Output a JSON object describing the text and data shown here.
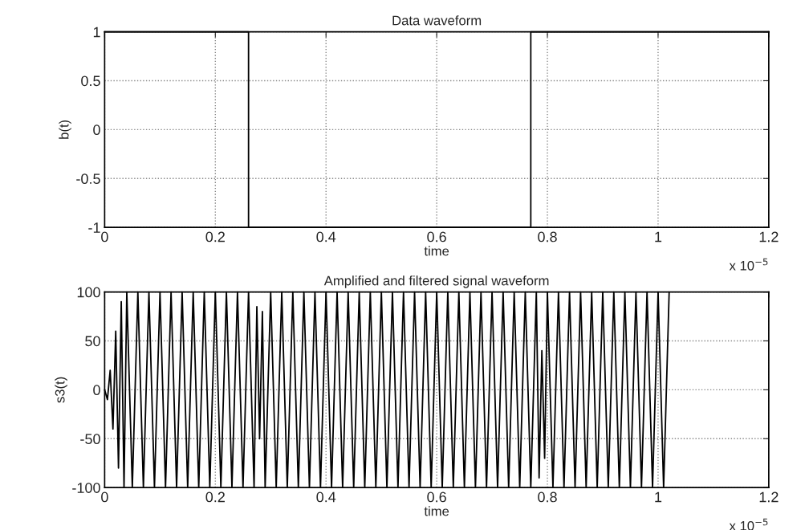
{
  "chart_data": [
    {
      "type": "line",
      "title": "Data waveform",
      "xlabel": "time",
      "ylabel": "b(t)",
      "xlim": [
        0,
        1.2
      ],
      "xticks": [
        0,
        0.2,
        0.4,
        0.6,
        0.8,
        1,
        1.2
      ],
      "ylim": [
        -1,
        1
      ],
      "yticks": [
        -1,
        -0.5,
        0,
        0.5,
        1
      ],
      "grid": true,
      "line_style": "solid",
      "annotations": [
        "x 10$^{−5}$"
      ],
      "series": [
        {
          "color": "#000000",
          "x": [
            0,
            0.26,
            0.26,
            0.77,
            0.77,
            1.2
          ],
          "values": [
            1,
            1,
            -1,
            -1,
            1,
            1
          ]
        }
      ]
    },
    {
      "type": "line",
      "title": "Amplified and filtered signal waveform",
      "xlabel": "time",
      "ylabel": "s3(t)",
      "xlim": [
        0,
        1.2
      ],
      "xticks": [
        0,
        0.2,
        0.4,
        0.6,
        0.8,
        1,
        1.2
      ],
      "ylim": [
        -100,
        100
      ],
      "yticks": [
        -100,
        -50,
        0,
        50,
        100
      ],
      "grid": true,
      "line_style": "solid",
      "annotations": [
        "x 10$^{−5}$"
      ],
      "series": [
        {
          "color": "#000000",
          "x": [
            0,
            0.005,
            0.01,
            0.015,
            0.02,
            0.025,
            0.03,
            0.035,
            0.04,
            0.05,
            0.06,
            0.07,
            0.08,
            0.09,
            0.1,
            0.11,
            0.12,
            0.13,
            0.14,
            0.15,
            0.16,
            0.17,
            0.18,
            0.19,
            0.2,
            0.21,
            0.22,
            0.23,
            0.24,
            0.25,
            0.26,
            0.27,
            0.275,
            0.28,
            0.285,
            0.29,
            0.3,
            0.31,
            0.32,
            0.33,
            0.34,
            0.35,
            0.36,
            0.37,
            0.38,
            0.39,
            0.4,
            0.41,
            0.42,
            0.43,
            0.44,
            0.45,
            0.46,
            0.47,
            0.48,
            0.49,
            0.5,
            0.51,
            0.52,
            0.53,
            0.54,
            0.55,
            0.56,
            0.57,
            0.58,
            0.59,
            0.6,
            0.61,
            0.62,
            0.63,
            0.64,
            0.65,
            0.66,
            0.67,
            0.68,
            0.69,
            0.7,
            0.71,
            0.72,
            0.73,
            0.74,
            0.75,
            0.76,
            0.77,
            0.78,
            0.785,
            0.79,
            0.795,
            0.8,
            0.81,
            0.82,
            0.83,
            0.84,
            0.85,
            0.86,
            0.87,
            0.88,
            0.89,
            0.9,
            0.91,
            0.92,
            0.93,
            0.94,
            0.95,
            0.96,
            0.97,
            0.98,
            0.99,
            1.0,
            1.01,
            1.02
          ],
          "values": [
            0,
            -10,
            20,
            -40,
            60,
            -80,
            90,
            -100,
            100,
            -100,
            100,
            -100,
            100,
            -100,
            100,
            -100,
            100,
            -100,
            100,
            -100,
            100,
            -100,
            100,
            -100,
            100,
            -100,
            100,
            -100,
            100,
            -100,
            100,
            -100,
            85,
            -50,
            80,
            -100,
            100,
            -100,
            100,
            -100,
            100,
            -100,
            100,
            -100,
            100,
            -100,
            100,
            -100,
            100,
            -100,
            100,
            -100,
            100,
            -100,
            100,
            -100,
            100,
            -100,
            100,
            -100,
            100,
            -100,
            100,
            -100,
            100,
            -100,
            100,
            -100,
            100,
            -100,
            100,
            -100,
            100,
            -100,
            100,
            -100,
            100,
            -100,
            100,
            -100,
            100,
            -100,
            100,
            -100,
            100,
            -90,
            40,
            -70,
            100,
            -100,
            100,
            -100,
            100,
            -100,
            100,
            -100,
            100,
            -100,
            100,
            -100,
            100,
            -100,
            100,
            -100,
            100,
            -100,
            100,
            -100,
            100,
            -100,
            100
          ]
        }
      ]
    }
  ]
}
